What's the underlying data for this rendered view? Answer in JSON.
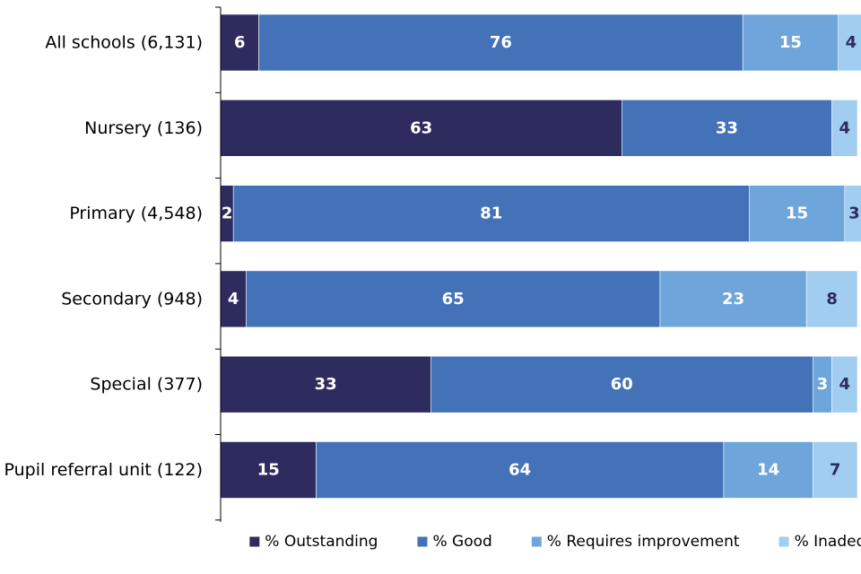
{
  "chart_data": {
    "type": "bar",
    "orientation": "horizontal",
    "stacked": true,
    "title": "",
    "xlabel": "",
    "ylabel": "",
    "xlim": [
      0,
      100
    ],
    "grid": false,
    "legend_position": "bottom",
    "categories": [
      "All schools (6,131)",
      "Nursery (136)",
      "Primary (4,548)",
      "Secondary (948)",
      "Special  (377)",
      "Pupil referral unit (122)"
    ],
    "series": [
      {
        "name": "% Outstanding",
        "color": "#2e2b5f",
        "label_color": "#ffffff",
        "values": [
          6,
          63,
          2,
          4,
          33,
          15
        ]
      },
      {
        "name": "% Good",
        "color": "#4472b8",
        "label_color": "#ffffff",
        "values": [
          76,
          33,
          81,
          65,
          60,
          64
        ]
      },
      {
        "name": "% Requires improvement",
        "color": "#6ea6dc",
        "label_color": "#ffffff",
        "values": [
          15,
          0,
          15,
          23,
          3,
          14
        ]
      },
      {
        "name": "% Inadequate",
        "color": "#a1cdf1",
        "label_color": "#2e2b5f",
        "values": [
          4,
          4,
          3,
          8,
          4,
          7
        ]
      }
    ]
  }
}
